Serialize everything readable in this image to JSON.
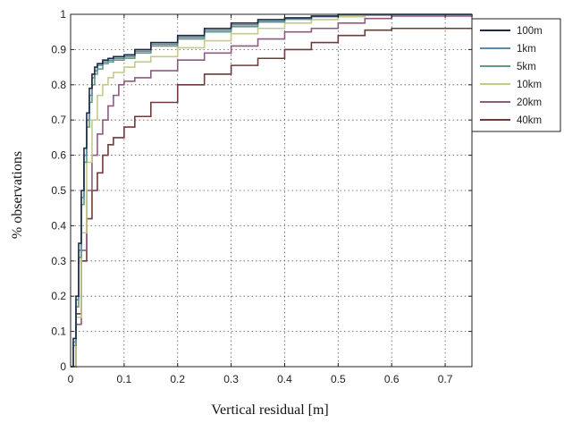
{
  "chart_data": {
    "type": "line",
    "title": "",
    "xlabel": "Vertical residual [m]",
    "ylabel": "% observations",
    "xlim": [
      0,
      0.75
    ],
    "ylim": [
      0,
      1
    ],
    "x_ticks": [
      0,
      0.1,
      0.2,
      0.3,
      0.4,
      0.5,
      0.6,
      0.7
    ],
    "x_tick_labels": [
      "0",
      "0.1",
      "0.2",
      "0.3",
      "0.4",
      "0.5",
      "0.6",
      "0.7"
    ],
    "y_ticks": [
      0,
      0.1,
      0.2,
      0.3,
      0.4,
      0.5,
      0.6,
      0.7,
      0.8,
      0.9,
      1
    ],
    "y_tick_labels": [
      "0",
      "0.1",
      "0.2",
      "0.3",
      "0.4",
      "0.5",
      "0.6",
      "0.7",
      "0.8",
      "0.9",
      "1"
    ],
    "grid": true,
    "legend_position": "top-right",
    "series": [
      {
        "name": "100m",
        "color": "#1f2a44",
        "x": [
          0,
          0.005,
          0.01,
          0.015,
          0.02,
          0.025,
          0.03,
          0.035,
          0.04,
          0.045,
          0.05,
          0.06,
          0.07,
          0.08,
          0.1,
          0.12,
          0.15,
          0.2,
          0.25,
          0.3,
          0.35,
          0.4,
          0.45,
          0.5,
          0.75
        ],
        "y": [
          0,
          0.08,
          0.2,
          0.35,
          0.5,
          0.62,
          0.72,
          0.79,
          0.83,
          0.85,
          0.86,
          0.87,
          0.875,
          0.88,
          0.885,
          0.9,
          0.92,
          0.94,
          0.96,
          0.975,
          0.985,
          0.99,
          0.995,
          1.0,
          1.0
        ]
      },
      {
        "name": "1km",
        "color": "#5d8aa8",
        "x": [
          0,
          0.005,
          0.01,
          0.015,
          0.02,
          0.025,
          0.03,
          0.035,
          0.04,
          0.045,
          0.05,
          0.06,
          0.07,
          0.08,
          0.1,
          0.12,
          0.15,
          0.2,
          0.25,
          0.3,
          0.35,
          0.4,
          0.45,
          0.5,
          0.75
        ],
        "y": [
          0,
          0.07,
          0.19,
          0.33,
          0.48,
          0.6,
          0.7,
          0.77,
          0.82,
          0.84,
          0.855,
          0.865,
          0.87,
          0.875,
          0.88,
          0.895,
          0.915,
          0.935,
          0.955,
          0.97,
          0.98,
          0.988,
          0.994,
          0.998,
          1.0
        ]
      },
      {
        "name": "5km",
        "color": "#5f9e7a",
        "x": [
          0,
          0.005,
          0.01,
          0.015,
          0.02,
          0.025,
          0.03,
          0.035,
          0.04,
          0.045,
          0.05,
          0.06,
          0.07,
          0.08,
          0.1,
          0.12,
          0.15,
          0.2,
          0.25,
          0.3,
          0.35,
          0.4,
          0.45,
          0.5,
          0.75
        ],
        "y": [
          0,
          0.06,
          0.17,
          0.31,
          0.46,
          0.58,
          0.68,
          0.75,
          0.8,
          0.83,
          0.845,
          0.86,
          0.865,
          0.87,
          0.875,
          0.89,
          0.91,
          0.93,
          0.95,
          0.965,
          0.978,
          0.986,
          0.993,
          0.998,
          1.0
        ]
      },
      {
        "name": "10km",
        "color": "#c5c98a",
        "x": [
          0,
          0.01,
          0.02,
          0.03,
          0.04,
          0.05,
          0.06,
          0.07,
          0.08,
          0.1,
          0.12,
          0.15,
          0.2,
          0.25,
          0.3,
          0.35,
          0.4,
          0.45,
          0.5,
          0.55,
          0.75
        ],
        "y": [
          0,
          0.14,
          0.38,
          0.58,
          0.7,
          0.77,
          0.8,
          0.82,
          0.835,
          0.85,
          0.865,
          0.88,
          0.905,
          0.925,
          0.945,
          0.96,
          0.975,
          0.985,
          0.993,
          0.998,
          1.0
        ]
      },
      {
        "name": "20km",
        "color": "#8e5a80",
        "x": [
          0,
          0.01,
          0.02,
          0.03,
          0.04,
          0.05,
          0.06,
          0.07,
          0.08,
          0.09,
          0.1,
          0.12,
          0.14,
          0.15,
          0.2,
          0.25,
          0.3,
          0.35,
          0.4,
          0.45,
          0.5,
          0.55,
          0.6,
          0.75
        ],
        "y": [
          0,
          0.12,
          0.33,
          0.5,
          0.6,
          0.66,
          0.7,
          0.74,
          0.77,
          0.8,
          0.81,
          0.82,
          0.82,
          0.84,
          0.87,
          0.89,
          0.91,
          0.93,
          0.95,
          0.96,
          0.975,
          0.988,
          0.995,
          1.0
        ]
      },
      {
        "name": "40km",
        "color": "#6e3a3a",
        "x": [
          0,
          0.01,
          0.02,
          0.03,
          0.04,
          0.05,
          0.06,
          0.07,
          0.08,
          0.1,
          0.12,
          0.15,
          0.2,
          0.25,
          0.3,
          0.35,
          0.4,
          0.45,
          0.5,
          0.55,
          0.6,
          0.75
        ],
        "y": [
          0,
          0.15,
          0.3,
          0.42,
          0.5,
          0.55,
          0.6,
          0.63,
          0.65,
          0.68,
          0.71,
          0.75,
          0.8,
          0.83,
          0.855,
          0.875,
          0.9,
          0.92,
          0.94,
          0.955,
          0.96,
          0.96
        ]
      }
    ]
  }
}
